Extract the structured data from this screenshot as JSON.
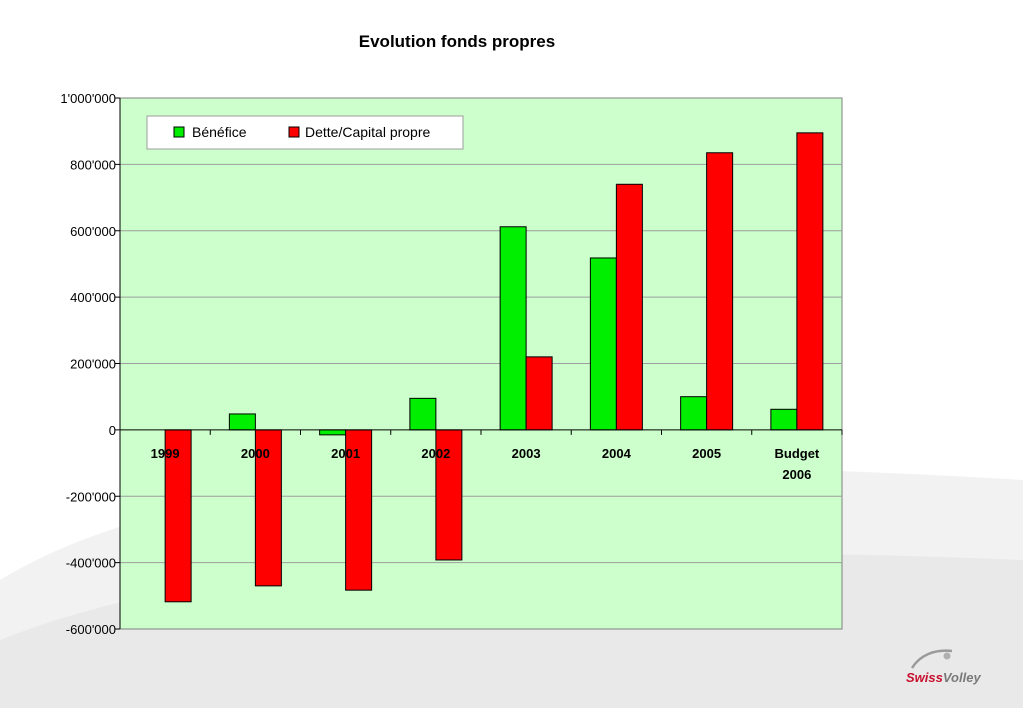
{
  "colors": {
    "plot_background": "#ccffcc",
    "benefice": "#00ee00",
    "dette": "#ff0000",
    "gridline": "#9e9e9e",
    "logo_red": "#c8102e",
    "logo_grey": "#7a7a7a"
  },
  "logo": {
    "part1": "Swiss",
    "part2": "Volley"
  },
  "chart_data": {
    "type": "bar",
    "title": "Evolution fonds propres",
    "xlabel": "",
    "ylabel": "",
    "categories": [
      [
        "1999"
      ],
      [
        "2000"
      ],
      [
        "2001"
      ],
      [
        "2002"
      ],
      [
        "2003"
      ],
      [
        "2004"
      ],
      [
        "2005"
      ],
      [
        "Budget",
        "2006"
      ]
    ],
    "series": [
      {
        "name": "Bénéfice",
        "values": [
          0,
          48000,
          -15000,
          95000,
          612000,
          518000,
          100000,
          62000
        ]
      },
      {
        "name": "Dette/Capital propre",
        "values": [
          -518000,
          -470000,
          -483000,
          -392000,
          220000,
          740000,
          835000,
          895000
        ]
      }
    ],
    "ylim": [
      -600000,
      1000000
    ],
    "yticks": [
      1000000,
      800000,
      600000,
      400000,
      200000,
      0,
      -200000,
      -400000,
      -600000
    ],
    "ytick_labels": [
      "1'000'000",
      "800'000",
      "600'000",
      "400'000",
      "200'000",
      "0",
      "-200'000",
      "-400'000",
      "-600'000"
    ],
    "grid": true,
    "legend_position": "top-left"
  }
}
